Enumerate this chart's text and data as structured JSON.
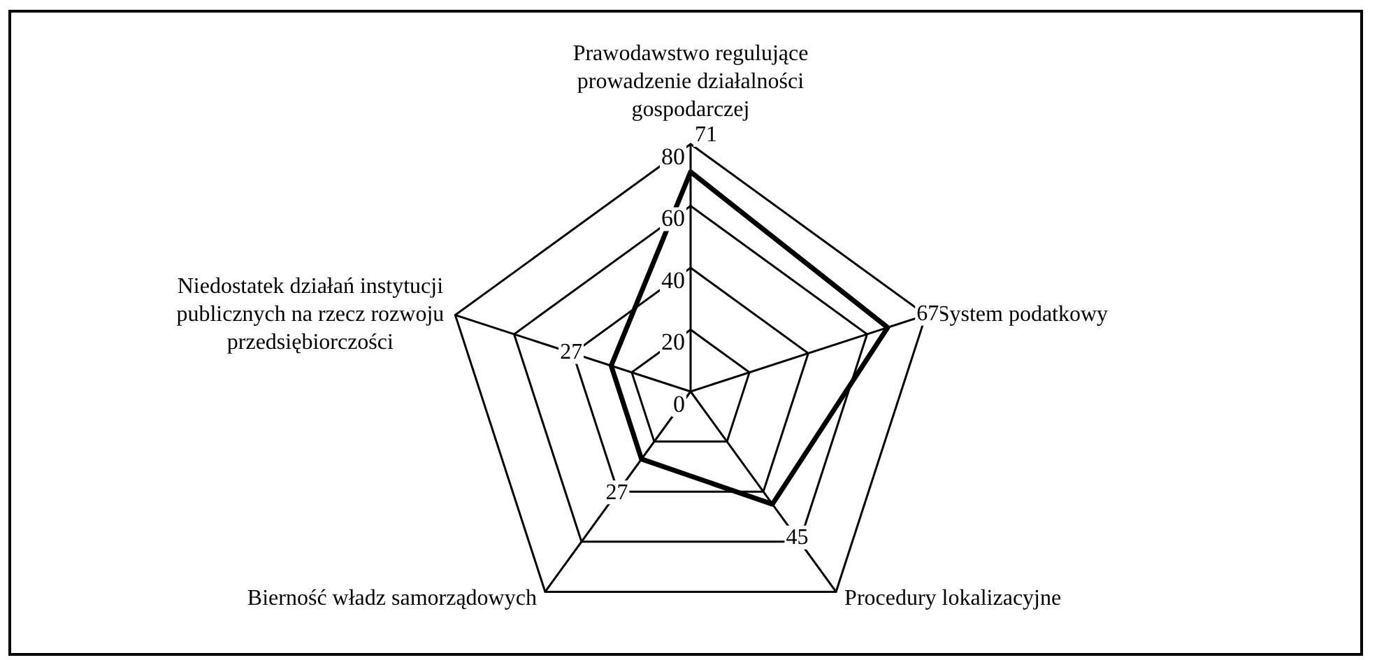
{
  "chart_data": {
    "type": "radar",
    "categories": [
      "Prawodawstwo regulujące prowadzenie działalności gospodarczej",
      "System podatkowy",
      "Procedury lokalizacyjne",
      "Bierność władz samorządowych",
      "Niedostatek działań instytucji publicznych na rzecz rozwoju przedsiębiorczości"
    ],
    "series": [
      {
        "color": "#000000",
        "values": [
          71,
          67,
          45,
          27,
          27
        ]
      }
    ],
    "ylim": [
      0,
      80
    ],
    "yticks": [
      0,
      20,
      40,
      60,
      80
    ],
    "grid": true,
    "legend": false,
    "marker": "none",
    "line_style": "solid",
    "data_labels": true
  }
}
